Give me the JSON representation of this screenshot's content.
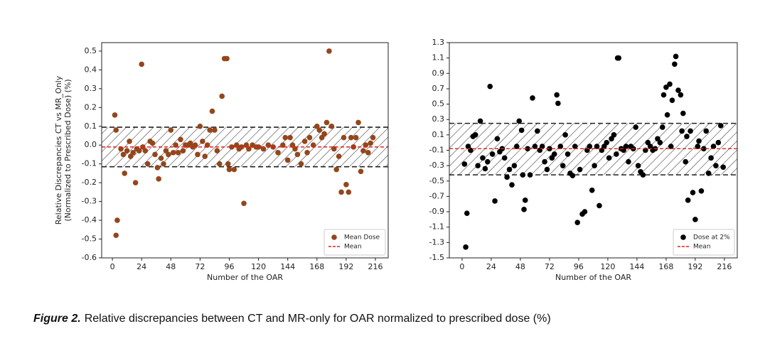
{
  "chart_data": [
    {
      "type": "scatter",
      "ylabel": [
        "Relative Discrepancies CT vs MR_Only",
        "(Normalized to Prescribed Dose) (%)"
      ],
      "xlabel": "Number of the OAR",
      "xlim": [
        -8.8,
        226.5
      ],
      "xticks": [
        0,
        24,
        48,
        72,
        96,
        120,
        144,
        168,
        192,
        216
      ],
      "ylim": [
        -0.6,
        0.545
      ],
      "yticks": [
        -0.6,
        -0.5,
        -0.4,
        -0.3,
        -0.2,
        -0.1,
        {
          "value": 0,
          "label": "0.0"
        },
        0.1,
        0.2,
        0.3,
        0.4,
        0.5
      ],
      "x": [
        2,
        3,
        3,
        4,
        7,
        9,
        10,
        12,
        14,
        15,
        17,
        19,
        20,
        22,
        24,
        25,
        27,
        29,
        31,
        33,
        35,
        37,
        38,
        40,
        42,
        44,
        46,
        48,
        50,
        52,
        54,
        56,
        58,
        60,
        62,
        64,
        66,
        68,
        70,
        72,
        74,
        76,
        78,
        80,
        82,
        84,
        86,
        88,
        90,
        92,
        94,
        95,
        96,
        98,
        100,
        102,
        104,
        106,
        108,
        110,
        112,
        115,
        118,
        120,
        124,
        128,
        132,
        136,
        140,
        142,
        144,
        146,
        148,
        150,
        152,
        155,
        158,
        160,
        162,
        165,
        168,
        170,
        172,
        174,
        176,
        178,
        180,
        182,
        184,
        186,
        188,
        190,
        192,
        194,
        196,
        198,
        200,
        202,
        204,
        206,
        208,
        210,
        212,
        214
      ],
      "series": [
        {
          "name": "Mean Dose",
          "color": "#94461b",
          "values": [
            0.16,
            0.08,
            -0.48,
            -0.4,
            -0.02,
            -0.05,
            -0.15,
            -0.03,
            0.02,
            -0.06,
            -0.04,
            -0.2,
            -0.02,
            -0.03,
            0.43,
            -0.01,
            -0.03,
            -0.1,
            0.02,
            0.01,
            -0.05,
            -0.12,
            -0.18,
            -0.07,
            -0.1,
            -0.03,
            -0.05,
            0.08,
            -0.04,
            0.0,
            -0.04,
            0.03,
            -0.03,
            0.0,
            0.0,
            0.01,
            -0.01,
            0.0,
            -0.05,
            0.1,
            0.02,
            -0.06,
            0.0,
            0.08,
            0.18,
            0.08,
            -0.03,
            -0.1,
            0.26,
            0.46,
            0.46,
            -0.1,
            -0.13,
            -0.01,
            -0.13,
            0.0,
            -0.02,
            -0.01,
            -0.31,
            0.0,
            -0.02,
            0.0,
            -0.01,
            -0.01,
            -0.02,
            0.0,
            -0.01,
            -0.04,
            0.0,
            0.04,
            -0.08,
            0.04,
            0.0,
            -0.02,
            -0.05,
            -0.1,
            0.02,
            -0.04,
            0.04,
            0.0,
            0.1,
            0.08,
            0.04,
            0.06,
            0.12,
            0.5,
            0.1,
            -0.02,
            -0.13,
            -0.06,
            -0.25,
            0.04,
            -0.21,
            -0.25,
            0.04,
            -0.01,
            0.04,
            0.12,
            -0.14,
            -0.03,
            0.0,
            -0.04,
            0.01,
            0.04
          ]
        }
      ],
      "mean": {
        "name": "Mean",
        "value": -0.01,
        "color": "#e3201c"
      },
      "band": [
        -0.115,
        0.095
      ],
      "legend": "lower right"
    },
    {
      "type": "scatter",
      "xlabel": "Number of the OAR",
      "xlim": [
        -10.5,
        226.6
      ],
      "xticks": [
        0,
        24,
        48,
        72,
        96,
        120,
        144,
        168,
        192,
        216
      ],
      "ylim": [
        -1.5,
        1.3
      ],
      "yticks": [
        -1.5,
        -1.3,
        -1.1,
        -0.9,
        -0.7,
        -0.5,
        -0.3,
        -0.1,
        0.1,
        0.3,
        0.5,
        0.7,
        0.9,
        1.1,
        1.3
      ],
      "x": [
        2,
        3,
        4,
        5,
        7,
        9,
        11,
        13,
        15,
        17,
        19,
        21,
        23,
        25,
        27,
        29,
        31,
        33,
        35,
        37,
        39,
        41,
        43,
        45,
        47,
        49,
        50,
        51,
        52,
        54,
        56,
        58,
        60,
        62,
        64,
        66,
        68,
        70,
        72,
        74,
        76,
        78,
        79,
        81,
        83,
        85,
        87,
        89,
        91,
        93,
        95,
        97,
        99,
        101,
        103,
        105,
        107,
        109,
        111,
        113,
        115,
        117,
        119,
        121,
        123,
        125,
        127,
        128,
        129,
        131,
        133,
        135,
        137,
        139,
        141,
        143,
        145,
        147,
        149,
        151,
        153,
        155,
        157,
        159,
        161,
        163,
        165,
        166,
        168,
        169,
        171,
        172,
        173,
        175,
        176,
        178,
        180,
        181,
        182,
        184,
        185,
        186,
        188,
        190,
        192,
        194,
        195,
        197,
        199,
        201,
        203,
        205,
        207,
        209,
        211,
        213,
        215
      ],
      "series": [
        {
          "name": "Dose at 2%",
          "color": "#000000",
          "values": [
            -0.28,
            -1.36,
            -0.92,
            -0.05,
            -0.1,
            0.08,
            0.1,
            -0.3,
            0.28,
            -0.2,
            -0.34,
            -0.25,
            0.73,
            -0.15,
            -0.76,
            0.05,
            -0.12,
            -0.08,
            -0.2,
            -0.45,
            -0.35,
            -0.55,
            -0.3,
            -0.05,
            0.28,
            0.16,
            -0.42,
            -0.87,
            -0.75,
            -0.08,
            -0.42,
            0.58,
            -0.05,
            0.15,
            -0.1,
            -0.05,
            -0.25,
            -0.35,
            -0.08,
            -0.2,
            -0.15,
            0.62,
            0.51,
            -0.05,
            -0.3,
            0.1,
            -0.15,
            -0.4,
            -0.43,
            -0.05,
            -1.04,
            -0.35,
            -0.93,
            -0.9,
            -0.1,
            -0.05,
            -0.62,
            -0.3,
            -0.05,
            -0.82,
            -0.1,
            -0.05,
            0.0,
            -0.2,
            0.05,
            0.1,
            -0.15,
            1.1,
            1.1,
            -0.08,
            -0.1,
            -0.05,
            -0.25,
            -0.05,
            -0.08,
            0.2,
            -0.3,
            -0.38,
            -0.42,
            -0.1,
            0.0,
            -0.05,
            -0.1,
            -0.08,
            0.05,
            0.0,
            0.2,
            0.62,
            0.72,
            0.36,
            0.76,
            -0.05,
            0.55,
            1.02,
            1.12,
            0.68,
            0.62,
            0.15,
            0.38,
            -0.25,
            0.08,
            -0.75,
            0.15,
            -0.65,
            -1.0,
            -0.05,
            0.02,
            -0.63,
            -0.08,
            0.15,
            -0.4,
            -0.2,
            -0.05,
            -0.3,
            0.0,
            0.22,
            -0.32
          ]
        }
      ],
      "mean": {
        "name": "Mean",
        "value": -0.08,
        "color": "#e3201c"
      },
      "band": [
        -0.42,
        0.25
      ],
      "legend": "lower right"
    }
  ],
  "caption": {
    "label": "Figure 2.",
    "text": "Relative discrepancies between CT and MR-only for OAR normalized to prescribed dose (%)"
  }
}
